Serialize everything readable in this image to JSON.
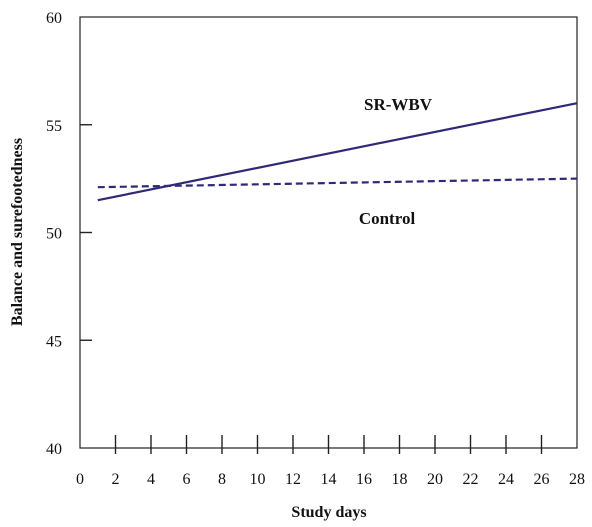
{
  "chart_data": {
    "type": "line",
    "xlabel": "Study days",
    "ylabel": "Balance and surefootedness",
    "xlim": [
      0,
      28
    ],
    "ylim": [
      40,
      60
    ],
    "xticks": [
      "0",
      "2",
      "4",
      "6",
      "8",
      "10",
      "12",
      "14",
      "16",
      "18",
      "20",
      "22",
      "24",
      "26",
      "28"
    ],
    "yticks": [
      "40",
      "45",
      "50",
      "55",
      "60"
    ],
    "grid": false,
    "legend": "none",
    "series": [
      {
        "name": "SR-WBV",
        "style": "solid",
        "color": "#2e2a78",
        "x": [
          1,
          28
        ],
        "y": [
          51.5,
          56.0
        ]
      },
      {
        "name": "Control",
        "style": "dashed",
        "color": "#2e2a78",
        "x": [
          1,
          28
        ],
        "y": [
          52.1,
          52.5
        ]
      }
    ]
  }
}
